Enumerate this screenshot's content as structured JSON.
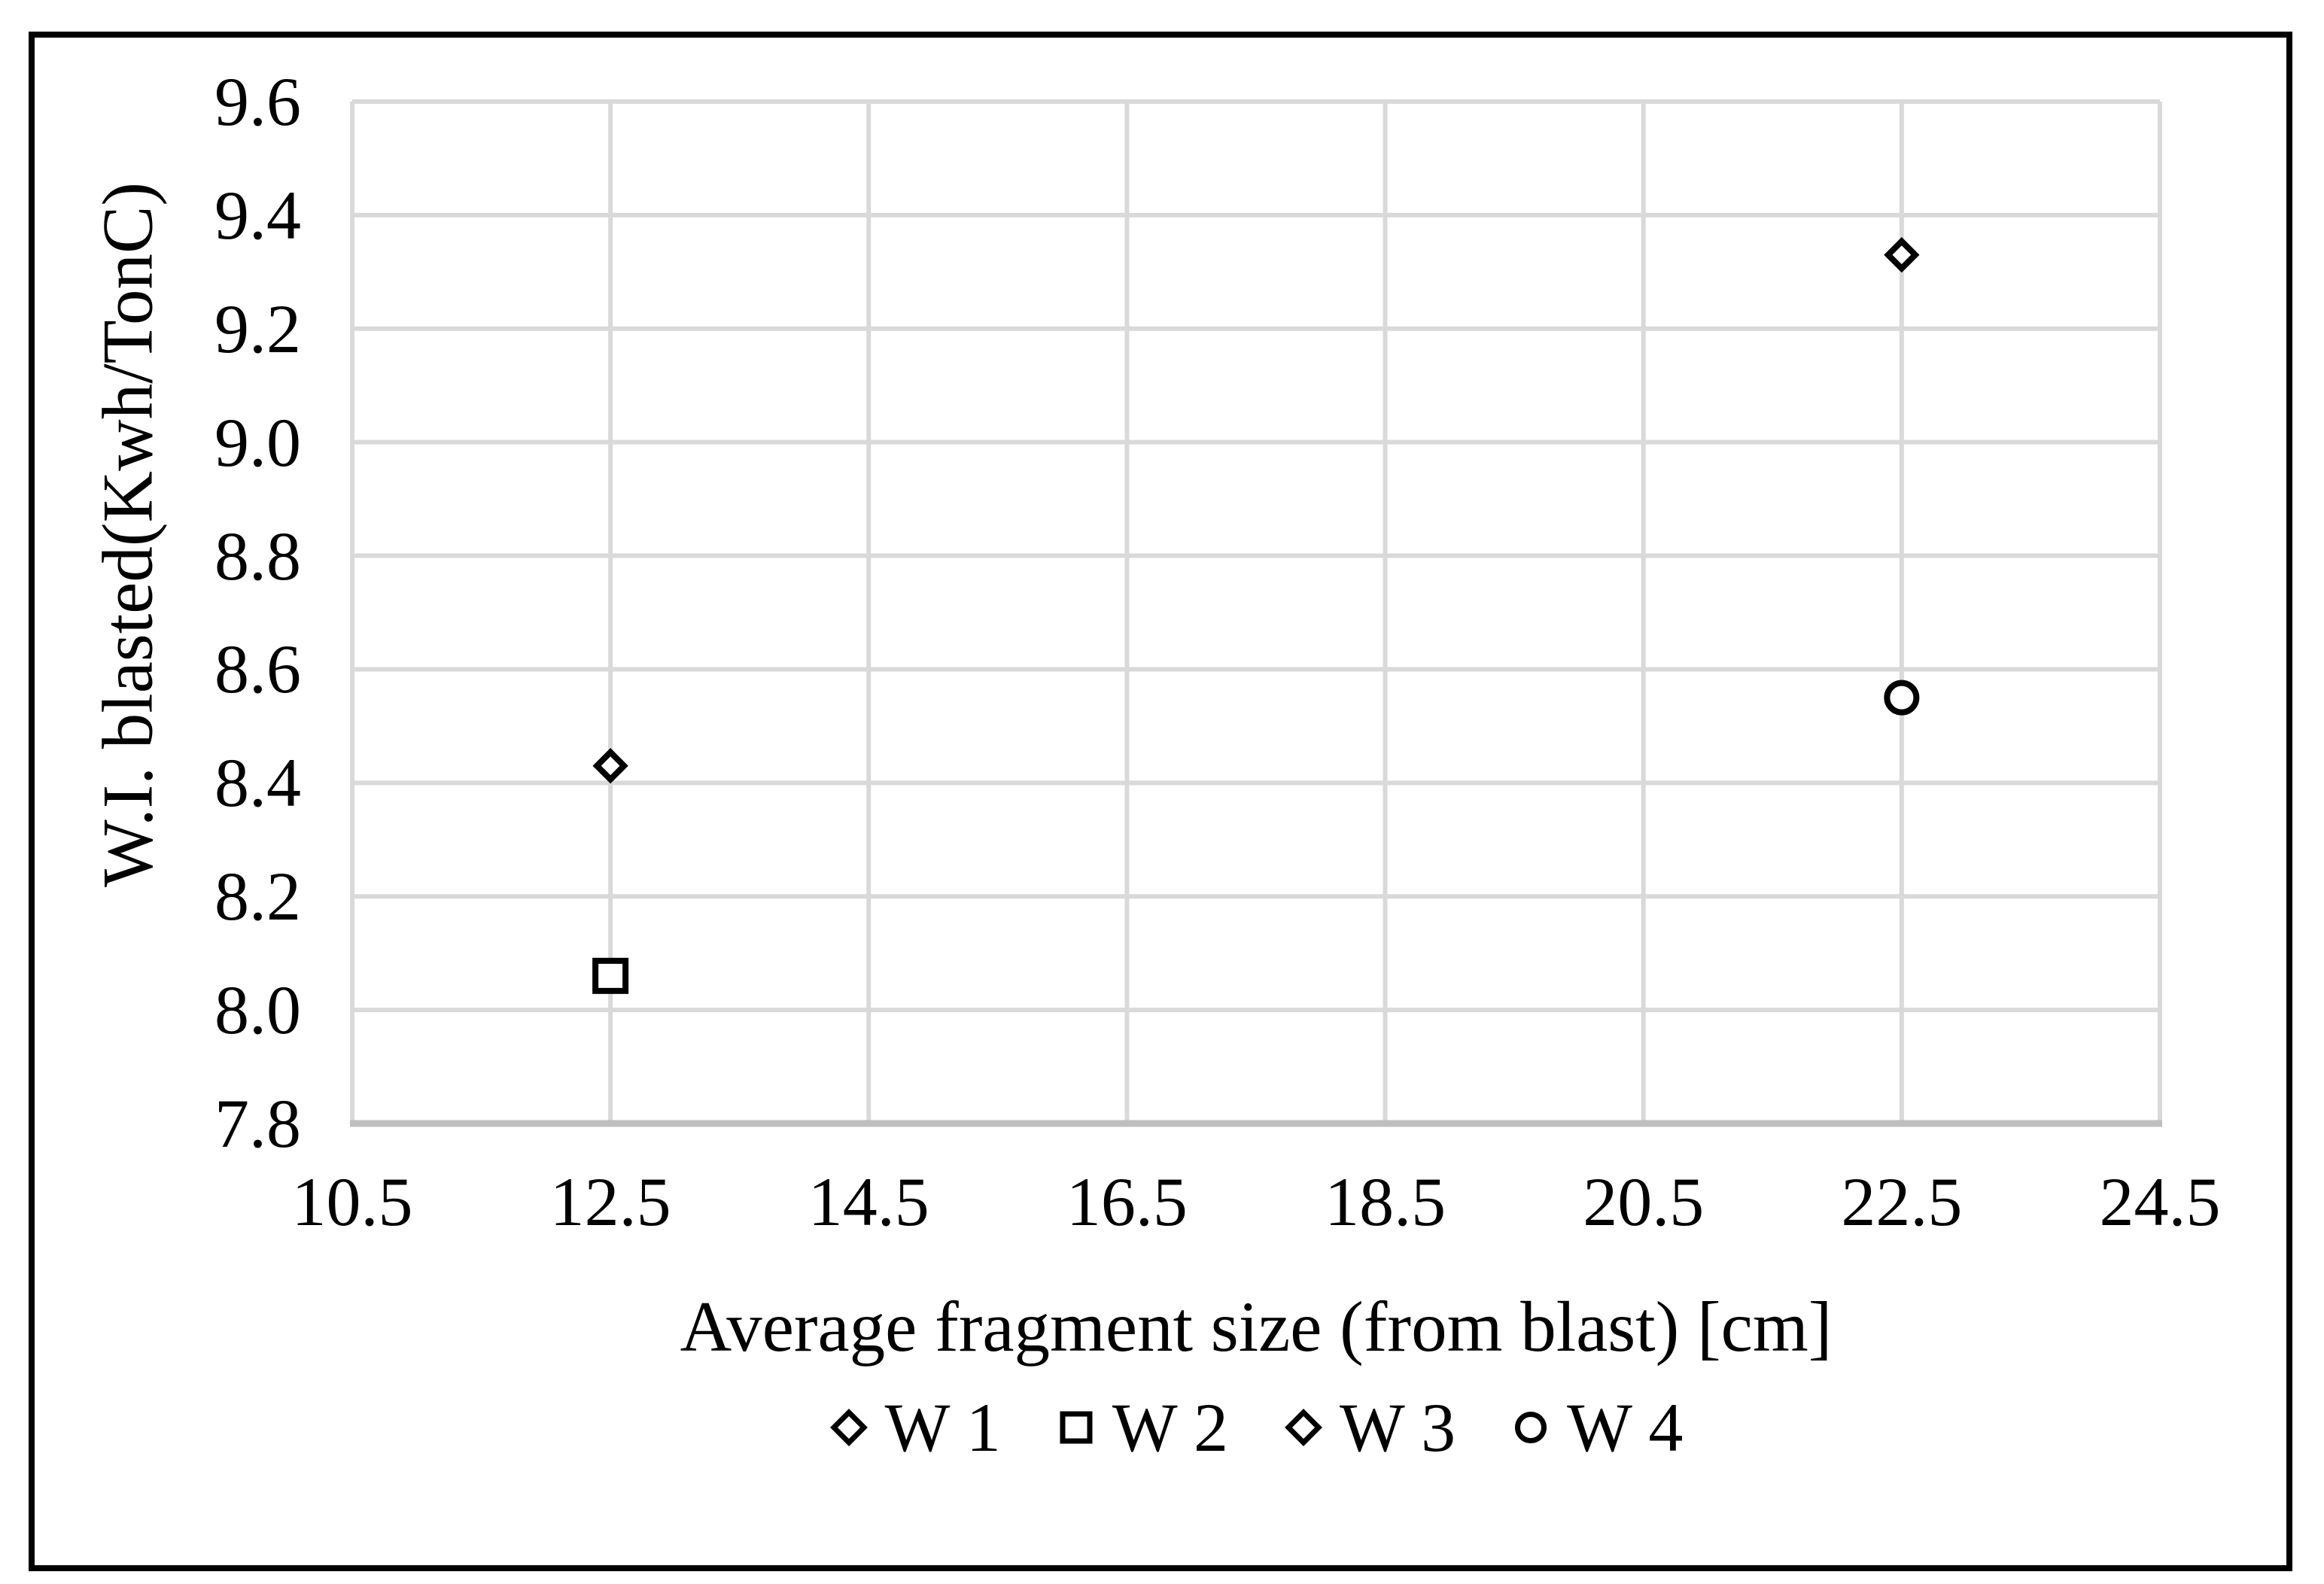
{
  "figure": {
    "background": "#ffffff",
    "border_color": "#000000"
  },
  "chart_data": {
    "type": "scatter",
    "title": "",
    "xlabel": "Average fragment size (from blast) [cm]",
    "ylabel": "W.I. blasted(Kwh/TonC)",
    "xlim": [
      10.5,
      24.5
    ],
    "ylim": [
      7.8,
      9.6
    ],
    "xticks": [
      "10.5",
      "12.5",
      "14.5",
      "16.5",
      "18.5",
      "20.5",
      "22.5",
      "24.5"
    ],
    "yticks": [
      "9.6",
      "9.4",
      "9.2",
      "9.0",
      "8.8",
      "8.6",
      "8.4",
      "8.2",
      "8.0",
      "7.8"
    ],
    "grid": true,
    "legend_position": "bottom",
    "series": [
      {
        "name": "W 1",
        "marker": "diamond",
        "points": [
          {
            "x": 12.5,
            "y": 8.43
          }
        ]
      },
      {
        "name": "W 2",
        "marker": "square",
        "points": [
          {
            "x": 12.5,
            "y": 8.06
          }
        ]
      },
      {
        "name": "W 3",
        "marker": "diamond",
        "points": [
          {
            "x": 22.5,
            "y": 9.33
          }
        ]
      },
      {
        "name": "W 4",
        "marker": "circle",
        "points": [
          {
            "x": 22.5,
            "y": 8.55
          }
        ]
      }
    ],
    "colors": {
      "gridline": "#d9d9d9",
      "axis_line": "#bfbfbf",
      "marker_stroke": "#000000",
      "marker_fill": "#ffffff",
      "text": "#000000"
    }
  }
}
